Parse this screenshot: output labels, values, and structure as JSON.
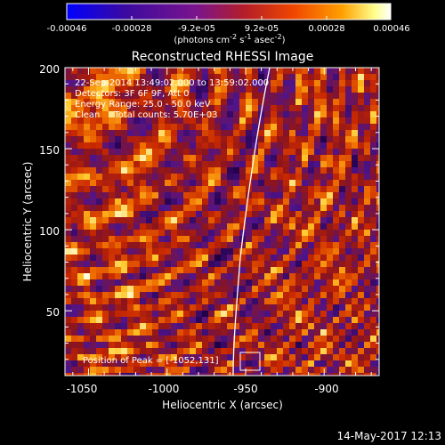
{
  "colorbar": {
    "tick_labels": [
      "-0.00046",
      "-0.00028",
      "-9.2e-05",
      "9.2e-05",
      "0.00028",
      "0.00046"
    ],
    "units_html": "(photons cm<tspan dy='-4' font-size='8'>-2</tspan><tspan dy='4'> s</tspan><tspan dy='-4' font-size='8'>-1</tspan><tspan dy='4'> asec</tspan><tspan dy='-4' font-size='8'>-2</tspan><tspan dy='4'>)</tspan>",
    "units_text": "(photons cm-2 s-1 asec-2)",
    "colors": [
      "#0000ff",
      "#3b0aa0",
      "#7a148c",
      "#b41e28",
      "#f04600",
      "#ffa000",
      "#ffff8c",
      "#ffffff"
    ]
  },
  "plot": {
    "title": "Reconstructed RHESSI Image",
    "xlabel": "Heliocentric X (arcsec)",
    "ylabel": "Heliocentric Y (arcsec)",
    "x_ticks": [
      "-1050",
      "-1000",
      "-950",
      "-900"
    ],
    "y_ticks": [
      "50",
      "100",
      "150",
      "200"
    ],
    "xlim": [
      -1065,
      -865
    ],
    "ylim": [
      10,
      200
    ]
  },
  "info": {
    "line1": "22-Sep-2014 13:49:02.000 to 13:59:02.000",
    "line2": "Detectors: 3F 6F 9F, Att 0",
    "line3": "Energy Range: 25.0 - 50.0 keV",
    "line4": "Clean     Total counts: 5.70E+03"
  },
  "peak_label": "Position of Peak = [-1052,131]",
  "footer_date": "14-May-2017 12:13"
}
